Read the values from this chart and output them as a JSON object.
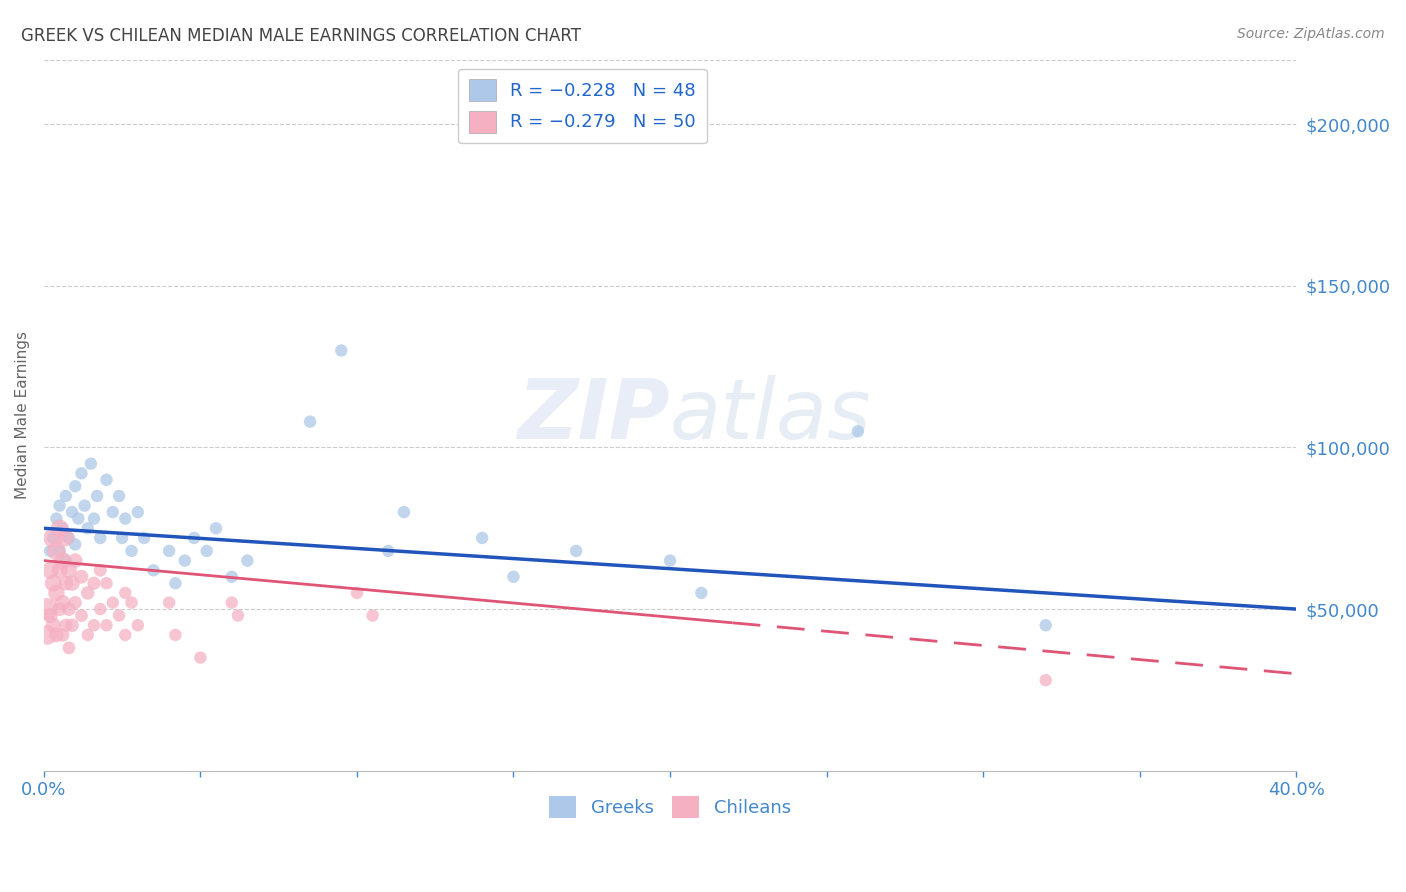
{
  "title": "GREEK VS CHILEAN MEDIAN MALE EARNINGS CORRELATION CHART",
  "source": "Source: ZipAtlas.com",
  "ylabel": "Median Male Earnings",
  "ytick_labels": [
    "$50,000",
    "$100,000",
    "$150,000",
    "$200,000"
  ],
  "ytick_values": [
    50000,
    100000,
    150000,
    200000
  ],
  "ymin": 0,
  "ymax": 220000,
  "xmin": 0.0,
  "xmax": 0.4,
  "watermark_zip": "ZIP",
  "watermark_atlas": "atlas",
  "greek_color": "#adc8e8",
  "chilean_color": "#f5b0c2",
  "greek_line_color": "#2255bb",
  "chilean_line_color": "#e05575",
  "title_color": "#444444",
  "axis_label_color": "#4488cc",
  "legend_text_color": "#2266cc",
  "greek_points": [
    [
      0.002,
      68000
    ],
    [
      0.003,
      72000
    ],
    [
      0.004,
      78000
    ],
    [
      0.005,
      82000
    ],
    [
      0.005,
      68000
    ],
    [
      0.006,
      75000
    ],
    [
      0.007,
      85000
    ],
    [
      0.007,
      65000
    ],
    [
      0.008,
      72000
    ],
    [
      0.009,
      80000
    ],
    [
      0.01,
      88000
    ],
    [
      0.01,
      70000
    ],
    [
      0.011,
      78000
    ],
    [
      0.012,
      92000
    ],
    [
      0.013,
      82000
    ],
    [
      0.014,
      75000
    ],
    [
      0.015,
      95000
    ],
    [
      0.016,
      78000
    ],
    [
      0.017,
      85000
    ],
    [
      0.018,
      72000
    ],
    [
      0.02,
      90000
    ],
    [
      0.022,
      80000
    ],
    [
      0.024,
      85000
    ],
    [
      0.025,
      72000
    ],
    [
      0.026,
      78000
    ],
    [
      0.028,
      68000
    ],
    [
      0.03,
      80000
    ],
    [
      0.032,
      72000
    ],
    [
      0.035,
      62000
    ],
    [
      0.04,
      68000
    ],
    [
      0.042,
      58000
    ],
    [
      0.045,
      65000
    ],
    [
      0.048,
      72000
    ],
    [
      0.052,
      68000
    ],
    [
      0.055,
      75000
    ],
    [
      0.06,
      60000
    ],
    [
      0.065,
      65000
    ],
    [
      0.085,
      108000
    ],
    [
      0.095,
      130000
    ],
    [
      0.11,
      68000
    ],
    [
      0.115,
      80000
    ],
    [
      0.14,
      72000
    ],
    [
      0.15,
      60000
    ],
    [
      0.17,
      68000
    ],
    [
      0.2,
      65000
    ],
    [
      0.21,
      55000
    ],
    [
      0.26,
      105000
    ],
    [
      0.32,
      45000
    ]
  ],
  "chilean_points": [
    [
      0.001,
      50000
    ],
    [
      0.001,
      42000
    ],
    [
      0.002,
      62000
    ],
    [
      0.002,
      48000
    ],
    [
      0.003,
      72000
    ],
    [
      0.003,
      58000
    ],
    [
      0.003,
      45000
    ],
    [
      0.004,
      68000
    ],
    [
      0.004,
      55000
    ],
    [
      0.004,
      42000
    ],
    [
      0.005,
      75000
    ],
    [
      0.005,
      62000
    ],
    [
      0.005,
      50000
    ],
    [
      0.006,
      65000
    ],
    [
      0.006,
      52000
    ],
    [
      0.006,
      42000
    ],
    [
      0.007,
      72000
    ],
    [
      0.007,
      58000
    ],
    [
      0.007,
      45000
    ],
    [
      0.008,
      62000
    ],
    [
      0.008,
      50000
    ],
    [
      0.008,
      38000
    ],
    [
      0.009,
      58000
    ],
    [
      0.009,
      45000
    ],
    [
      0.01,
      65000
    ],
    [
      0.01,
      52000
    ],
    [
      0.012,
      60000
    ],
    [
      0.012,
      48000
    ],
    [
      0.014,
      55000
    ],
    [
      0.014,
      42000
    ],
    [
      0.016,
      58000
    ],
    [
      0.016,
      45000
    ],
    [
      0.018,
      62000
    ],
    [
      0.018,
      50000
    ],
    [
      0.02,
      58000
    ],
    [
      0.02,
      45000
    ],
    [
      0.022,
      52000
    ],
    [
      0.024,
      48000
    ],
    [
      0.026,
      55000
    ],
    [
      0.026,
      42000
    ],
    [
      0.028,
      52000
    ],
    [
      0.03,
      45000
    ],
    [
      0.04,
      52000
    ],
    [
      0.042,
      42000
    ],
    [
      0.05,
      35000
    ],
    [
      0.06,
      52000
    ],
    [
      0.062,
      48000
    ],
    [
      0.1,
      55000
    ],
    [
      0.105,
      48000
    ],
    [
      0.32,
      28000
    ]
  ],
  "greek_sizes": [
    80,
    80,
    80,
    80,
    80,
    80,
    80,
    80,
    80,
    80,
    80,
    80,
    80,
    80,
    80,
    80,
    80,
    80,
    80,
    80,
    80,
    80,
    80,
    80,
    80,
    80,
    80,
    80,
    80,
    80,
    80,
    80,
    80,
    80,
    80,
    80,
    80,
    80,
    80,
    80,
    80,
    80,
    80,
    80,
    80,
    80,
    80,
    80
  ],
  "chilean_sizes": [
    250,
    200,
    150,
    120,
    200,
    150,
    120,
    180,
    140,
    110,
    160,
    130,
    100,
    150,
    120,
    95,
    140,
    110,
    90,
    130,
    100,
    85,
    120,
    95,
    110,
    90,
    100,
    85,
    95,
    80,
    90,
    80,
    85,
    80,
    80,
    80,
    80,
    80,
    80,
    80,
    80,
    80,
    80,
    80,
    80,
    80,
    80,
    80,
    80,
    80
  ]
}
